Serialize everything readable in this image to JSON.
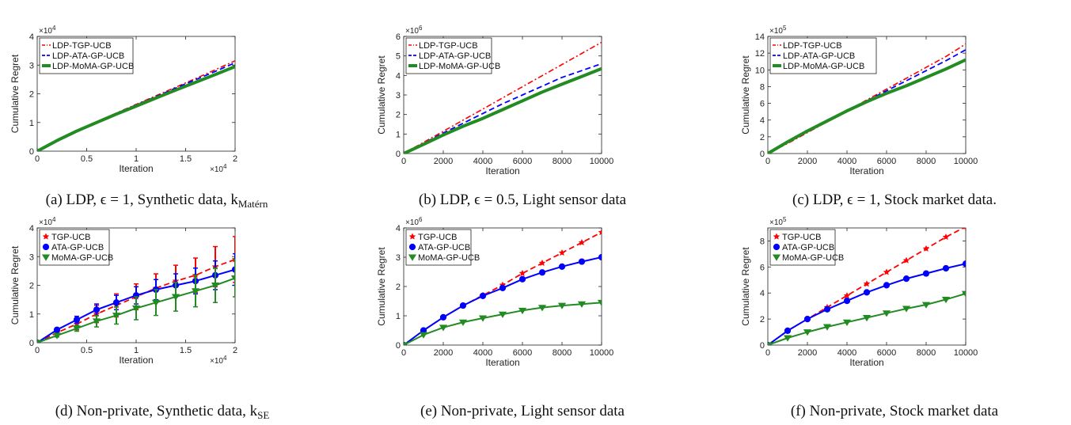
{
  "colors": {
    "tgp": "#ff0000",
    "ata": "#0000ff",
    "moma": "#228b22",
    "axis": "#222222"
  },
  "chart_data": [
    {
      "id": "a",
      "type": "line",
      "caption": "(a) LDP, ϵ = 1, Synthetic data, k",
      "caption_sub": "Matérn",
      "xlabel": "Iteration",
      "ylabel": "Cumulative Regret",
      "xlim": [
        0,
        20000
      ],
      "ylim": [
        0,
        40000
      ],
      "xticks": [
        0,
        5000,
        10000,
        15000,
        20000
      ],
      "xticklabels": [
        "0",
        "0.5",
        "1",
        "1.5",
        "2"
      ],
      "xexp": "×10",
      "xexp_power": "4",
      "yticks": [
        0,
        10000,
        20000,
        30000,
        40000
      ],
      "yticklabels": [
        "0",
        "1",
        "2",
        "3",
        "4"
      ],
      "yexp": "×10",
      "yexp_power": "4",
      "series": [
        {
          "name": "LDP-TGP-UCB",
          "style": "dashdot",
          "x": [
            0,
            2000,
            4000,
            6000,
            8000,
            10000,
            12000,
            14000,
            16000,
            18000,
            20000
          ],
          "y": [
            0,
            3800,
            7200,
            10300,
            13300,
            16300,
            19300,
            22300,
            25300,
            28400,
            31500
          ]
        },
        {
          "name": "LDP-ATA-GP-UCB",
          "style": "dashed",
          "x": [
            0,
            2000,
            4000,
            6000,
            8000,
            10000,
            12000,
            14000,
            16000,
            18000,
            20000
          ],
          "y": [
            0,
            3800,
            7100,
            10200,
            13200,
            16100,
            19000,
            22000,
            24900,
            27800,
            30800
          ]
        },
        {
          "name": "LDP-MoMA-GP-UCB",
          "style": "thick",
          "x": [
            0,
            2000,
            4000,
            6000,
            8000,
            10000,
            12000,
            14000,
            16000,
            18000,
            20000
          ],
          "y": [
            0,
            3700,
            7000,
            10000,
            12900,
            15700,
            18500,
            21300,
            24000,
            26700,
            29500
          ]
        }
      ]
    },
    {
      "id": "b",
      "type": "line",
      "caption": "(b) LDP, ϵ = 0.5, Light sensor data",
      "caption_sub": "",
      "xlabel": "Iteration",
      "ylabel": "Cumulative Regret",
      "xlim": [
        0,
        10000
      ],
      "ylim": [
        0,
        6000000
      ],
      "xticks": [
        0,
        2000,
        4000,
        6000,
        8000,
        10000
      ],
      "xticklabels": [
        "0",
        "2000",
        "4000",
        "6000",
        "8000",
        "10000"
      ],
      "xexp": "",
      "xexp_power": "",
      "yticks": [
        0,
        1000000,
        2000000,
        3000000,
        4000000,
        5000000,
        6000000
      ],
      "yticklabels": [
        "0",
        "1",
        "2",
        "3",
        "4",
        "5",
        "6"
      ],
      "yexp": "×10",
      "yexp_power": "6",
      "series": [
        {
          "name": "LDP-TGP-UCB",
          "style": "dashdot",
          "x": [
            0,
            1000,
            2000,
            3000,
            4000,
            5000,
            6000,
            7000,
            8000,
            9000,
            10000
          ],
          "y": [
            0,
            570000,
            1140000,
            1710000,
            2280000,
            2850000,
            3420000,
            3990000,
            4560000,
            5130000,
            5700000
          ]
        },
        {
          "name": "LDP-ATA-GP-UCB",
          "style": "dashed",
          "x": [
            0,
            1000,
            2000,
            3000,
            4000,
            5000,
            6000,
            7000,
            8000,
            9000,
            10000
          ],
          "y": [
            0,
            520000,
            1050000,
            1550000,
            2050000,
            2550000,
            3000000,
            3450000,
            3900000,
            4250000,
            4600000
          ]
        },
        {
          "name": "LDP-MoMA-GP-UCB",
          "style": "thick",
          "x": [
            0,
            1000,
            2000,
            3000,
            4000,
            5000,
            6000,
            7000,
            8000,
            9000,
            10000
          ],
          "y": [
            0,
            470000,
            950000,
            1400000,
            1800000,
            2250000,
            2700000,
            3150000,
            3550000,
            3950000,
            4350000
          ]
        }
      ]
    },
    {
      "id": "c",
      "type": "line",
      "caption": "(c) LDP, ϵ = 1, Stock market data.",
      "caption_sub": "",
      "xlabel": "Iteration",
      "ylabel": "Cumulative Regret",
      "xlim": [
        0,
        10000
      ],
      "ylim": [
        0,
        1400000
      ],
      "xticks": [
        0,
        2000,
        4000,
        6000,
        8000,
        10000
      ],
      "xticklabels": [
        "0",
        "2000",
        "4000",
        "6000",
        "8000",
        "10000"
      ],
      "xexp": "",
      "xexp_power": "",
      "yticks": [
        0,
        200000,
        400000,
        600000,
        800000,
        1000000,
        1200000,
        1400000
      ],
      "yticklabels": [
        "0",
        "2",
        "4",
        "6",
        "8",
        "10",
        "12",
        "14"
      ],
      "yexp": "×10",
      "yexp_power": "5",
      "series": [
        {
          "name": "LDP-TGP-UCB",
          "style": "dashdot",
          "x": [
            0,
            1000,
            2000,
            3000,
            4000,
            5000,
            6000,
            7000,
            8000,
            9000,
            10000
          ],
          "y": [
            0,
            120000,
            250000,
            380000,
            510000,
            640000,
            770000,
            900000,
            1030000,
            1160000,
            1310000
          ]
        },
        {
          "name": "LDP-ATA-GP-UCB",
          "style": "dashed",
          "x": [
            0,
            1000,
            2000,
            3000,
            4000,
            5000,
            6000,
            7000,
            8000,
            9000,
            10000
          ],
          "y": [
            0,
            130000,
            260000,
            380000,
            510000,
            630000,
            750000,
            870000,
            990000,
            1110000,
            1240000
          ]
        },
        {
          "name": "LDP-MoMA-GP-UCB",
          "style": "thick",
          "x": [
            0,
            1000,
            2000,
            3000,
            4000,
            5000,
            6000,
            7000,
            8000,
            9000,
            10000
          ],
          "y": [
            0,
            140000,
            270000,
            390000,
            510000,
            620000,
            720000,
            810000,
            910000,
            1010000,
            1120000
          ]
        }
      ]
    },
    {
      "id": "d",
      "type": "line",
      "caption": "(d) Non-private, Synthetic data, k",
      "caption_sub": "SE",
      "xlabel": "Iteration",
      "ylabel": "Cumulative Regret",
      "xlim": [
        0,
        20000
      ],
      "ylim": [
        0,
        40000
      ],
      "xticks": [
        0,
        5000,
        10000,
        15000,
        20000
      ],
      "xticklabels": [
        "0",
        "0.5",
        "1",
        "1.5",
        "2"
      ],
      "xexp": "×10",
      "xexp_power": "4",
      "yticks": [
        0,
        10000,
        20000,
        30000,
        40000
      ],
      "yticklabels": [
        "0",
        "1",
        "2",
        "3",
        "4"
      ],
      "yexp": "×10",
      "yexp_power": "4",
      "series": [
        {
          "name": "TGP-UCB",
          "style": "dashed",
          "marker": "star",
          "x": [
            0,
            2000,
            4000,
            6000,
            8000,
            10000,
            12000,
            14000,
            16000,
            18000,
            20000
          ],
          "y": [
            0,
            3500,
            6500,
            10000,
            13000,
            16000,
            19000,
            21500,
            23500,
            26500,
            29000
          ],
          "err": [
            0,
            1000,
            2000,
            3000,
            4000,
            4500,
            5000,
            5500,
            6000,
            7000,
            8000
          ]
        },
        {
          "name": "ATA-GP-UCB",
          "style": "solid",
          "marker": "circle",
          "x": [
            0,
            2000,
            4000,
            6000,
            8000,
            10000,
            12000,
            14000,
            16000,
            18000,
            20000
          ],
          "y": [
            0,
            4500,
            8000,
            11500,
            14000,
            16500,
            18500,
            20000,
            21500,
            23500,
            25500
          ],
          "err": [
            0,
            500,
            1200,
            2000,
            2500,
            3000,
            3500,
            4000,
            4500,
            5000,
            5500
          ]
        },
        {
          "name": "MoMA-GP-UCB",
          "style": "solid",
          "marker": "triangle",
          "x": [
            0,
            2000,
            4000,
            6000,
            8000,
            10000,
            12000,
            14000,
            16000,
            18000,
            20000
          ],
          "y": [
            0,
            2500,
            5000,
            7500,
            9500,
            12000,
            14000,
            16000,
            18000,
            20000,
            22500
          ],
          "err": [
            0,
            500,
            1000,
            2000,
            3000,
            4000,
            4500,
            5000,
            5500,
            6000,
            6500
          ]
        }
      ]
    },
    {
      "id": "e",
      "type": "line",
      "caption": "(e) Non-private, Light sensor data",
      "caption_sub": "",
      "xlabel": "Iteration",
      "ylabel": "Cumulative Regret",
      "xlim": [
        0,
        10000
      ],
      "ylim": [
        0,
        4000000
      ],
      "xticks": [
        0,
        2000,
        4000,
        6000,
        8000,
        10000
      ],
      "xticklabels": [
        "0",
        "2000",
        "4000",
        "6000",
        "8000",
        "10000"
      ],
      "xexp": "",
      "xexp_power": "",
      "yticks": [
        0,
        1000000,
        2000000,
        3000000,
        4000000
      ],
      "yticklabels": [
        "0",
        "1",
        "2",
        "3",
        "4"
      ],
      "yexp": "×10",
      "yexp_power": "6",
      "series": [
        {
          "name": "TGP-UCB",
          "style": "dashed",
          "marker": "star",
          "x": [
            0,
            1000,
            2000,
            3000,
            4000,
            5000,
            6000,
            7000,
            8000,
            9000,
            10000
          ],
          "y": [
            0,
            500000,
            950000,
            1350000,
            1700000,
            2050000,
            2450000,
            2800000,
            3150000,
            3500000,
            3850000
          ]
        },
        {
          "name": "ATA-GP-UCB",
          "style": "solid",
          "marker": "circle",
          "x": [
            0,
            1000,
            2000,
            3000,
            4000,
            5000,
            6000,
            7000,
            8000,
            9000,
            10000
          ],
          "y": [
            0,
            500000,
            950000,
            1350000,
            1680000,
            1950000,
            2250000,
            2480000,
            2680000,
            2850000,
            3000000
          ]
        },
        {
          "name": "MoMA-GP-UCB",
          "style": "solid",
          "marker": "triangle",
          "x": [
            0,
            1000,
            2000,
            3000,
            4000,
            5000,
            6000,
            7000,
            8000,
            9000,
            10000
          ],
          "y": [
            0,
            350000,
            600000,
            780000,
            920000,
            1050000,
            1180000,
            1280000,
            1350000,
            1400000,
            1450000
          ]
        }
      ]
    },
    {
      "id": "f",
      "type": "line",
      "caption": "(f) Non-private, Stock market data",
      "caption_sub": "",
      "xlabel": "Iteration",
      "ylabel": "Cumulative Regret",
      "xlim": [
        0,
        10000
      ],
      "ylim": [
        0,
        900000
      ],
      "xticks": [
        0,
        2000,
        4000,
        6000,
        8000,
        10000
      ],
      "xticklabels": [
        "0",
        "2000",
        "4000",
        "6000",
        "8000",
        "10000"
      ],
      "xexp": "",
      "xexp_power": "",
      "yticks": [
        0,
        200000,
        400000,
        600000,
        800000
      ],
      "yticklabels": [
        "0",
        "2",
        "4",
        "6",
        "8"
      ],
      "yexp": "×10",
      "yexp_power": "5",
      "series": [
        {
          "name": "TGP-UCB",
          "style": "dashed",
          "marker": "star",
          "x": [
            0,
            1000,
            2000,
            3000,
            4000,
            5000,
            6000,
            7000,
            8000,
            9000,
            10000
          ],
          "y": [
            0,
            110000,
            200000,
            290000,
            380000,
            470000,
            560000,
            650000,
            740000,
            830000,
            910000
          ]
        },
        {
          "name": "ATA-GP-UCB",
          "style": "solid",
          "marker": "circle",
          "x": [
            0,
            1000,
            2000,
            3000,
            4000,
            5000,
            6000,
            7000,
            8000,
            9000,
            10000
          ],
          "y": [
            0,
            110000,
            200000,
            275000,
            340000,
            405000,
            460000,
            510000,
            550000,
            590000,
            625000
          ]
        },
        {
          "name": "MoMA-GP-UCB",
          "style": "solid",
          "marker": "triangle",
          "x": [
            0,
            1000,
            2000,
            3000,
            4000,
            5000,
            6000,
            7000,
            8000,
            9000,
            10000
          ],
          "y": [
            0,
            55000,
            100000,
            140000,
            175000,
            210000,
            245000,
            280000,
            310000,
            350000,
            395000
          ]
        }
      ]
    }
  ]
}
